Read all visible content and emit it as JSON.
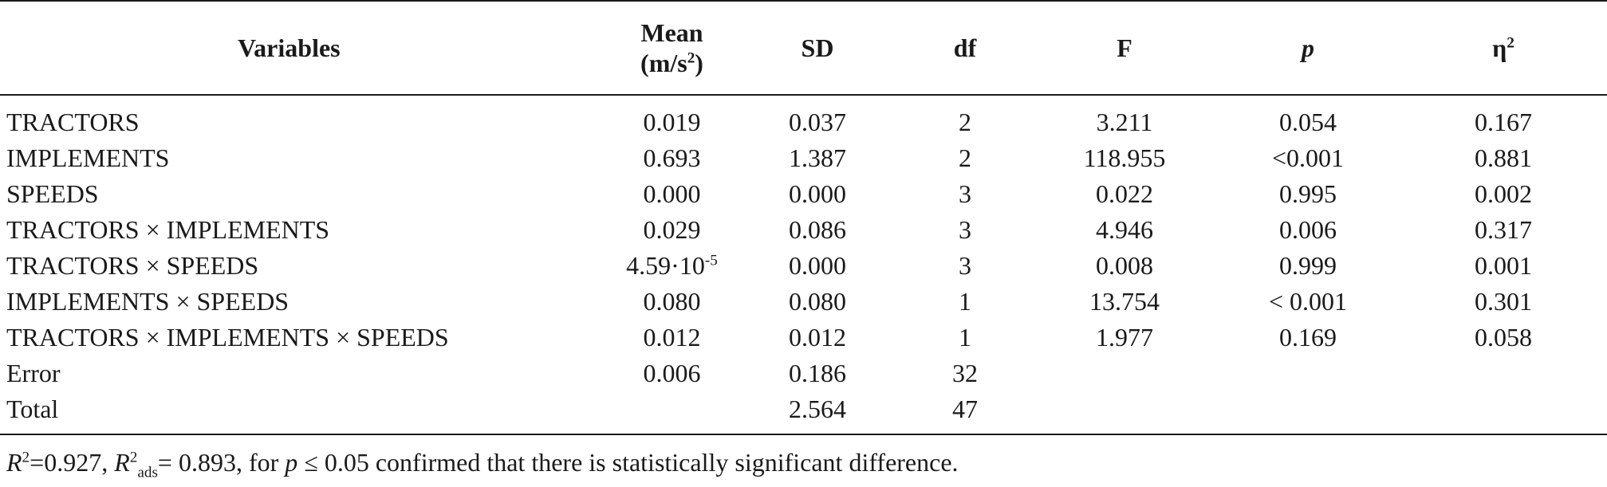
{
  "headers": {
    "variables": "Variables",
    "mean_line1": "Mean",
    "mean_line2_prefix": "(m/s",
    "mean_line2_sup": "2",
    "mean_line2_suffix": ")",
    "sd": "SD",
    "df": "df",
    "f": "F",
    "p": "p",
    "eta_base": "η",
    "eta_sup": "2"
  },
  "rows": [
    {
      "variable": "TRACTORS",
      "mean": "0.019",
      "sd": "0.037",
      "df": "2",
      "f": "3.211",
      "p": "0.054",
      "eta2": "0.167"
    },
    {
      "variable": "IMPLEMENTS",
      "mean": "0.693",
      "sd": "1.387",
      "df": "2",
      "f": "118.955",
      "p": "<0.001",
      "eta2": "0.881"
    },
    {
      "variable": "SPEEDS",
      "mean": "0.000",
      "sd": "0.000",
      "df": "3",
      "f": "0.022",
      "p": "0.995",
      "eta2": "0.002"
    },
    {
      "variable": "TRACTORS × IMPLEMENTS",
      "mean": "0.029",
      "sd": "0.086",
      "df": "3",
      "f": "4.946",
      "p": "0.006",
      "eta2": "0.317"
    },
    {
      "variable": "TRACTORS × SPEEDS",
      "mean_base": "4.59·10",
      "mean_exp": "-5",
      "sd": "0.000",
      "df": "3",
      "f": "0.008",
      "p": "0.999",
      "eta2": "0.001"
    },
    {
      "variable": "IMPLEMENTS × SPEEDS",
      "mean": "0.080",
      "sd": "0.080",
      "df": "1",
      "f": "13.754",
      "p": "< 0.001",
      "eta2": "0.301"
    },
    {
      "variable": "TRACTORS × IMPLEMENTS × SPEEDS",
      "mean": "0.012",
      "sd": "0.012",
      "df": "1",
      "f": "1.977",
      "p": "0.169",
      "eta2": "0.058"
    },
    {
      "variable": "Error",
      "mean": "0.006",
      "sd": "0.186",
      "df": "32",
      "f": "",
      "p": "",
      "eta2": ""
    },
    {
      "variable": "Total",
      "mean": "",
      "sd": "2.564",
      "df": "47",
      "f": "",
      "p": "",
      "eta2": ""
    }
  ],
  "note": {
    "r2_symbol": "R",
    "r2_sup": "2",
    "r2_value": "=0.927, ",
    "r2ads_symbol": "R",
    "r2ads_sup": "2",
    "r2ads_sub": "ads",
    "r2ads_value": "= 0.893, for ",
    "p_symbol": "p",
    "tail": " ≤ 0.05 confirmed that there is statistically significant difference."
  }
}
